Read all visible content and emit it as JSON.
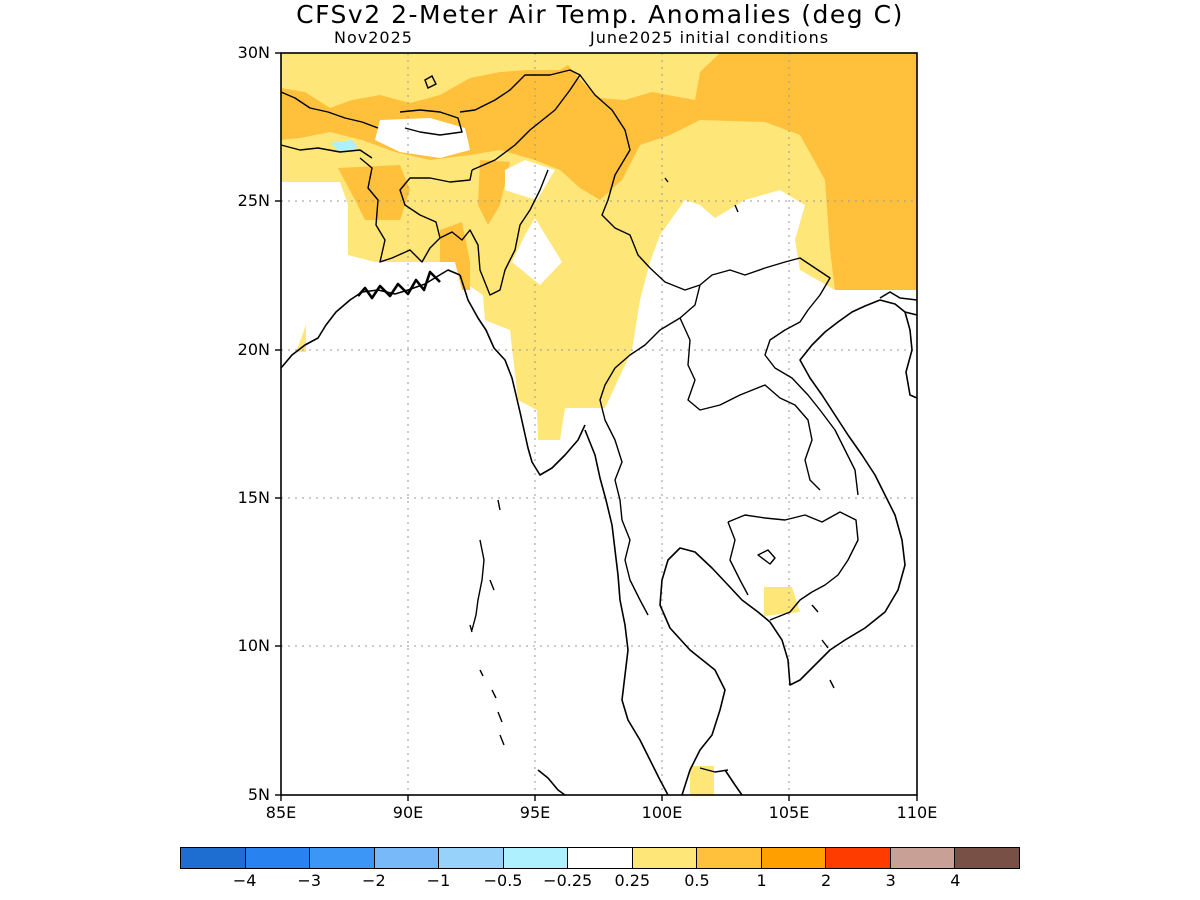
{
  "title": "CFSv2 2-Meter Air Temp. Anomalies (deg C)",
  "subtitle_left": "Nov2025",
  "subtitle_right": "June2025 initial conditions",
  "map": {
    "lon_range": [
      85,
      110
    ],
    "lat_range": [
      5,
      30
    ],
    "lat_ticks": [
      "30N",
      "25N",
      "20N",
      "15N",
      "10N",
      "5N"
    ],
    "lon_ticks": [
      "85E",
      "90E",
      "95E",
      "100E",
      "105E",
      "110E"
    ],
    "grid": "dotted",
    "region": "South and Southeast Asia (Bangladesh, Myanmar, Thailand, Indochina)",
    "anomaly_fields": [
      {
        "category": "0.5 to 1",
        "color": "#ffc03c",
        "areas": [
          "northeast India / Himalaya",
          "northern Myanmar",
          "southern China (east of 102E, north of 22N)"
        ]
      },
      {
        "category": "0.25 to 0.5",
        "color": "#ffe678",
        "areas": [
          "eastern India / Bangladesh",
          "central Myanmar (north of ~17N)",
          "southern China (north of ~24N)",
          "small patch over Cambodia near 105E 11-12N",
          "small patch near 101.5E 5N"
        ]
      },
      {
        "category": "-0.5 to -0.25",
        "color": "#aff0ff",
        "areas": [
          "small spot near 87.5E 26.5N"
        ]
      }
    ]
  },
  "colorbar": {
    "colors": [
      "#1e6ed2",
      "#2882f0",
      "#3c96f5",
      "#78b9fa",
      "#96d2fa",
      "#aff0ff",
      "#ffffff",
      "#ffe678",
      "#ffc03c",
      "#ffa000",
      "#ff3c00",
      "#c8a096",
      "#785046"
    ],
    "labels": [
      "-4",
      "-3",
      "-2",
      "-1",
      "-0.5",
      "-0.25",
      "0.25",
      "0.5",
      "1",
      "2",
      "3",
      "4"
    ]
  }
}
